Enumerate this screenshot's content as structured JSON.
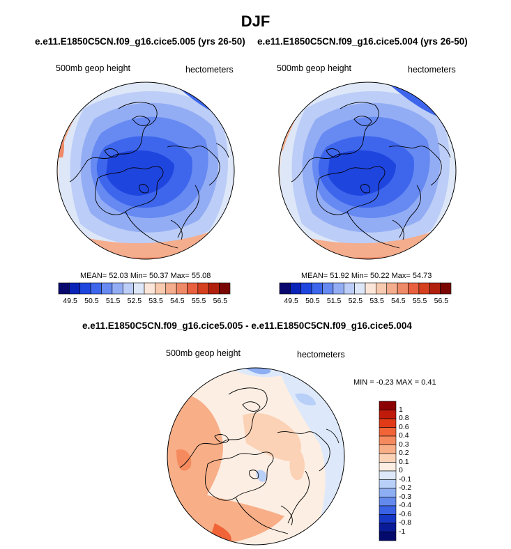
{
  "page": {
    "title": "DJF",
    "top_subtitle_left": "e.e11.E1850C5CN.f09_g16.cice5.005 (yrs 26-50)",
    "top_subtitle_right": "e.e11.E1850C5CN.f09_g16.cice5.004 (yrs 26-50)",
    "diff_subtitle": "e.e11.E1850C5CN.f09_g16.cice5.005 - e.e11.E1850C5CN.f09_g16.cice5.004"
  },
  "panels": {
    "left": {
      "label": "500mb geop height",
      "units": "hectometers",
      "stats": "MEAN=  52.03  Min=  50.37  Max=  55.08"
    },
    "right": {
      "label": "500mb geop height",
      "units": "hectometers",
      "stats": "MEAN=  51.92  Min=  50.22  Max=  54.73"
    },
    "diff": {
      "label": "500mb geop height",
      "units": "hectometers",
      "stats": "MIN =  -0.23 MAX =   0.41"
    }
  },
  "colorbars": {
    "abs_ticks": [
      "49.5",
      "50.5",
      "51.5",
      "52.5",
      "53.5",
      "54.5",
      "55.5",
      "56.5"
    ],
    "abs_colors": [
      "#08086e",
      "#0a24b8",
      "#1f45df",
      "#3d66ec",
      "#6689f2",
      "#93adf5",
      "#bccdf7",
      "#dde7f8",
      "#fbe6d9",
      "#f8cbb1",
      "#f4ad8d",
      "#ef8a68",
      "#e8603f",
      "#d5401f",
      "#b0200c",
      "#7a0603"
    ],
    "diff_ticks": [
      "1",
      "0.8",
      "0.6",
      "0.4",
      "0.3",
      "0.2",
      "0.1",
      "0",
      "-0.1",
      "-0.2",
      "-0.3",
      "-0.4",
      "-0.6",
      "-0.8",
      "-1"
    ],
    "diff_colors": [
      "#8b0000",
      "#bf1a0a",
      "#e03a17",
      "#f06437",
      "#f48a5e",
      "#f8ae87",
      "#fbd2b6",
      "#fdeee3",
      "#dde9fb",
      "#b8cff7",
      "#8daef2",
      "#6389ec",
      "#3a62e4",
      "#1638c4",
      "#0a1b98",
      "#030a6b"
    ]
  },
  "legend_colors": {
    "abs_colors": [
      "#08086e",
      "#0a24b8",
      "#1f45df",
      "#3d66ec",
      "#6689f2",
      "#93adf5",
      "#bccdf7",
      "#dde7f8",
      "#fbe6d9",
      "#f8cbb1",
      "#f4ad8d",
      "#ef8a68",
      "#e8603f",
      "#d5401f",
      "#b0200c",
      "#7a0603"
    ],
    "diff_colors": [
      "#8b0000",
      "#bf1a0a",
      "#e03a17",
      "#f06437",
      "#f48a5e",
      "#f8ae87",
      "#fbd2b6",
      "#fdeee3",
      "#dde9fb",
      "#b8cff7",
      "#8daef2",
      "#6389ec",
      "#3a62e4",
      "#1638c4",
      "#0a1b98",
      "#030a6b"
    ]
  }
}
